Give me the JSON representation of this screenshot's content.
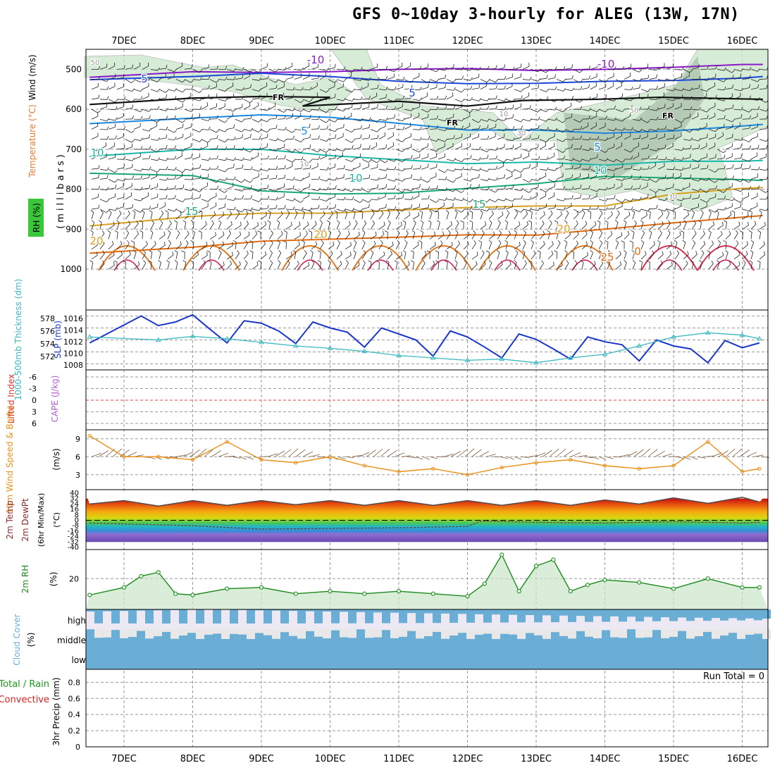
{
  "title": "GFS 0~10day 3-hourly for ALEG (13W, 17N)",
  "dates": [
    "7DEC",
    "8DEC",
    "9DEC",
    "10DEC",
    "11DEC",
    "12DEC",
    "13DEC",
    "14DEC",
    "15DEC",
    "16DEC"
  ],
  "colors": {
    "grid": "#999999",
    "temp_line": "#0d3fd0",
    "rh_fill": "#c9e6c9",
    "cloud": "#6aaed6",
    "cloud_bg": "#ece8f4",
    "barb": "#222222",
    "wind_speed": "#e8901a",
    "rh2m": "#1a8a1a",
    "slp": "#1a38c8",
    "thickness": "#3ab8c0"
  },
  "panels": {
    "upper": {
      "ylabel": "(millibars)",
      "labels": {
        "rh": "RH (%)",
        "temp": "Temperature (°C)",
        "wind": "Wind (m/s)"
      },
      "yticks": [
        500,
        600,
        700,
        800,
        900,
        1000
      ],
      "fr_label": "FR",
      "isotherm_labels": [
        "-10",
        "-10",
        "5",
        "5",
        "5",
        "5",
        "10",
        "10",
        "10",
        "15",
        "15",
        "20",
        "20",
        "20",
        "25",
        "0",
        "50",
        "30",
        "10",
        "30",
        "10",
        "50"
      ]
    },
    "slp": {
      "labels": {
        "thickness": "1000-500mb Thickness (dm)",
        "slp": "SLP (mb)"
      },
      "left_ticks": [
        "578",
        "576",
        "574",
        "572"
      ],
      "right_ticks": [
        "1016",
        "1014",
        "1012",
        "1010",
        "1008"
      ]
    },
    "cape": {
      "labels": {
        "li": "Lifted Index",
        "cape": "CAPE (J/kg)"
      },
      "yticks": [
        "-6",
        "-3",
        "0",
        "3",
        "6"
      ]
    },
    "wind10": {
      "labels": {
        "main": "10m Wind Speed & Barbs",
        "unit": "(m/s)"
      },
      "yticks": [
        "9",
        "6",
        "3"
      ]
    },
    "temp2m": {
      "labels": {
        "temp": "2m Temp",
        "dew": "2m DewPt",
        "minmax": "(6hr Min/Max)",
        "unit": "(°C)"
      },
      "yticks": [
        "40",
        "32",
        "24",
        "16",
        "8",
        "0",
        "-8",
        "-16",
        "-24",
        "-32",
        "-40"
      ]
    },
    "rh2m": {
      "labels": {
        "main": "2m RH",
        "unit": "(%)"
      },
      "yticks": [
        "20"
      ]
    },
    "cloud": {
      "labels": {
        "main": "Cloud Cover",
        "unit": "(%)"
      },
      "levels": [
        "high",
        "middle",
        "low"
      ]
    },
    "precip": {
      "labels": {
        "total": "Total / Rain",
        "conv": "Convective",
        "main": "3hr Precip (mm)"
      },
      "yticks": [
        "0.8",
        "0.6",
        "0.4",
        "0.2",
        "0"
      ],
      "yticks_extra": [
        "0.2"
      ],
      "run_total": "Run Total = 0"
    }
  },
  "chart_data": [
    {
      "type": "line",
      "panel": "upper-isotherms",
      "x_unit": "day (from 7DEC 00Z)",
      "y_unit": "pressure (mb)",
      "ylim": [
        450,
        1050
      ],
      "series": [
        {
          "name": "-10",
          "x": [
            -0.5,
            1,
            2,
            3,
            4,
            5,
            6,
            7,
            8,
            9,
            9.3
          ],
          "y": [
            520,
            506,
            508,
            506,
            500,
            498,
            503,
            500,
            495,
            488,
            488
          ]
        },
        {
          "name": "-5",
          "x": [
            -0.5,
            1,
            2,
            3,
            4,
            5,
            6,
            7,
            8,
            9,
            9.3
          ],
          "y": [
            526,
            518,
            510,
            518,
            530,
            536,
            535,
            530,
            528,
            522,
            518
          ]
        },
        {
          "name": "FR",
          "x": [
            -0.5,
            1,
            2,
            3,
            2.6,
            4,
            5,
            5.8,
            6.9,
            7.8,
            9.3
          ],
          "y": [
            588,
            572,
            568,
            570,
            592,
            580,
            592,
            578,
            575,
            570,
            575
          ]
        },
        {
          "name": "5",
          "x": [
            -0.5,
            1,
            2,
            3,
            4,
            5,
            6,
            7,
            8,
            9,
            9.3
          ],
          "y": [
            636,
            622,
            614,
            620,
            635,
            652,
            652,
            660,
            654,
            642,
            638
          ]
        },
        {
          "name": "10",
          "x": [
            -0.5,
            1,
            2,
            3,
            4,
            5,
            6,
            7,
            8,
            9,
            9.3
          ],
          "y": [
            718,
            700,
            700,
            716,
            726,
            736,
            732,
            740,
            730,
            730,
            728
          ]
        },
        {
          "name": "15",
          "x": [
            -0.5,
            1,
            2,
            3,
            4,
            5,
            6,
            7,
            8,
            9,
            9.3
          ],
          "y": [
            760,
            766,
            804,
            812,
            810,
            798,
            786,
            768,
            772,
            776,
            778
          ]
        },
        {
          "name": "20",
          "x": [
            -0.5,
            1,
            2,
            3,
            4,
            5,
            6,
            7,
            8,
            9,
            9.3
          ],
          "y": [
            892,
            868,
            860,
            860,
            852,
            846,
            842,
            842,
            812,
            798,
            796
          ]
        },
        {
          "name": "25",
          "x": [
            -0.5,
            1,
            2,
            3,
            4,
            5,
            6,
            7,
            8,
            9,
            9.3
          ],
          "y": [
            960,
            945,
            930,
            925,
            920,
            914,
            915,
            900,
            884,
            870,
            866
          ]
        }
      ]
    },
    {
      "type": "line",
      "panel": "slp-thickness",
      "series": [
        {
          "name": "SLP (mb)",
          "x": [
            -0.5,
            0,
            0.25,
            0.5,
            0.75,
            1,
            1.25,
            1.5,
            1.75,
            2,
            2.25,
            2.5,
            2.75,
            3,
            3.25,
            3.5,
            3.75,
            4,
            4.25,
            4.5,
            4.75,
            5,
            5.25,
            5.5,
            5.75,
            6,
            6.25,
            6.5,
            6.75,
            7,
            7.25,
            7.5,
            7.75,
            8,
            8.25,
            8.5,
            8.75,
            9,
            9.25
          ],
          "y": [
            1011.5,
            1014.5,
            1016,
            1014.4,
            1015,
            1016.2,
            1013.8,
            1011.5,
            1015.2,
            1014.8,
            1013.5,
            1011.4,
            1015,
            1014,
            1013.3,
            1010.8,
            1014,
            1013,
            1012,
            1009.3,
            1013.5,
            1012.5,
            1010.8,
            1009,
            1013,
            1012.1,
            1010.5,
            1008.8,
            1012.5,
            1011.7,
            1011.2,
            1008.5,
            1012,
            1011,
            1010.5,
            1008.2,
            1011.9,
            1010.7,
            1011.5
          ]
        },
        {
          "name": "Thickness (dm)",
          "x": [
            -0.5,
            0.5,
            1,
            1.5,
            2,
            2.5,
            3,
            3.5,
            4,
            4.5,
            5,
            5.5,
            6,
            6.5,
            7,
            7.5,
            8,
            8.5,
            9,
            9.25
          ],
          "y": [
            575.5,
            575,
            575.6,
            575.2,
            574.6,
            574,
            573.6,
            573.1,
            572.4,
            572,
            571.6,
            571.8,
            571.2,
            572,
            572.6,
            574,
            575.5,
            576.2,
            575.8,
            575.2
          ]
        }
      ]
    },
    {
      "type": "line",
      "panel": "wind10",
      "series": [
        {
          "name": "10m Wind Speed",
          "x": [
            -0.5,
            0,
            0.5,
            1,
            1.5,
            2,
            2.5,
            3,
            3.5,
            4,
            4.5,
            5,
            5.5,
            6,
            6.5,
            7,
            7.5,
            8,
            8.5,
            9,
            9.25
          ],
          "y": [
            9.5,
            6,
            6,
            5.5,
            8.5,
            5.5,
            5,
            6,
            4.5,
            3.5,
            4,
            3,
            4.2,
            5,
            5.5,
            4.5,
            4,
            4.5,
            8.5,
            3.5,
            4
          ]
        }
      ]
    },
    {
      "type": "area",
      "panel": "temp2m",
      "series": [
        {
          "name": "2m Temp",
          "x": [
            -0.5,
            0,
            0.5,
            1,
            1.5,
            2,
            2.5,
            3,
            3.5,
            4,
            4.5,
            5,
            5.5,
            6,
            6.5,
            7,
            7.5,
            8,
            8.5,
            9,
            9.25
          ],
          "y": [
            24,
            29,
            21,
            29,
            22,
            29,
            23,
            29,
            22,
            29,
            22,
            29,
            22,
            29,
            22,
            30,
            24,
            33,
            25,
            34,
            27
          ]
        },
        {
          "name": "2m DewPt",
          "x": [
            -0.5,
            1,
            2,
            3,
            4,
            5,
            5.2,
            6,
            7,
            8,
            9,
            9.25
          ],
          "y": [
            -4,
            -8,
            -13,
            -12,
            -11,
            -9,
            -1,
            -3,
            -4,
            -2,
            -4,
            -3
          ]
        }
      ]
    },
    {
      "type": "area",
      "panel": "rh2m",
      "series": [
        {
          "name": "2m RH (%)",
          "x": [
            -0.5,
            0,
            0.25,
            0.5,
            0.75,
            1,
            1.5,
            2,
            2.5,
            3,
            3.5,
            4,
            4.5,
            5,
            5.25,
            5.5,
            5.75,
            6,
            6.25,
            6.5,
            6.75,
            7,
            7.5,
            8,
            8.5,
            9,
            9.25
          ],
          "y": [
            7,
            13,
            22,
            25,
            8,
            7,
            12,
            13,
            8,
            10,
            8,
            10,
            8,
            6,
            16,
            39,
            10,
            30,
            35,
            10,
            15,
            19,
            17,
            12,
            20,
            13,
            13
          ]
        }
      ]
    }
  ]
}
